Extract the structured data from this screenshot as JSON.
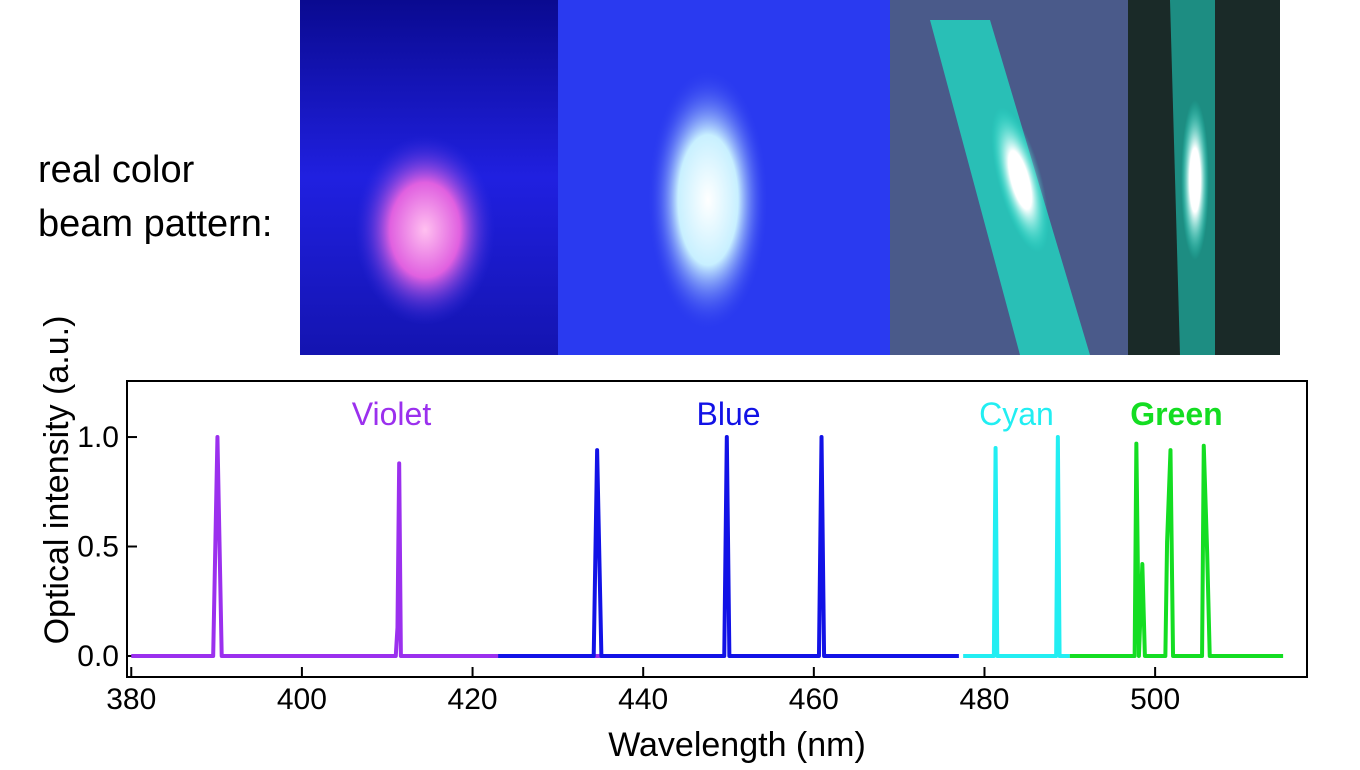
{
  "chart_data": {
    "type": "line",
    "annotations": [
      "real color",
      "beam pattern:"
    ],
    "xlabel": "Wavelength (nm)",
    "ylabel": "Optical intensity (a.u.)",
    "xlim": [
      379.5,
      517.8
    ],
    "ylim": [
      -0.096,
      1.256
    ],
    "xticks": [
      380,
      400,
      420,
      440,
      460,
      480,
      500
    ],
    "yticks": [
      {
        "value": 0,
        "label": "0.0"
      },
      {
        "value": 0.5,
        "label": "0.5"
      },
      {
        "value": 1,
        "label": "1.0"
      }
    ],
    "series": [
      {
        "name": "Violet",
        "color": "#9b30ee",
        "bold": false,
        "x": [
          380,
          389.6,
          390.1,
          390.6,
          411,
          411.2,
          411.4,
          411.6,
          412,
          441
        ],
        "values": [
          0,
          0,
          1.0,
          0,
          0,
          0.13,
          0.88,
          0,
          0,
          0
        ]
      },
      {
        "name": "Blue",
        "color": "#1212e6",
        "bold": false,
        "x": [
          423,
          434.2,
          434.6,
          435.1,
          449.5,
          449.8,
          450.1,
          460.6,
          460.9,
          461.2,
          477
        ],
        "values": [
          0,
          0,
          0.94,
          0,
          0,
          1.0,
          0,
          0,
          1.0,
          0,
          0
        ]
      },
      {
        "name": "Cyan",
        "color": "#22eef2",
        "bold": false,
        "x": [
          477.5,
          481.1,
          481.3,
          481.5,
          488.4,
          488.6,
          488.8,
          490
        ],
        "values": [
          0,
          0,
          0.95,
          0,
          0,
          1.0,
          0,
          0
        ]
      },
      {
        "name": "Green",
        "color": "#14dd22",
        "bold": true,
        "x": [
          490,
          497.6,
          497.8,
          498.1,
          498.5,
          498.8,
          501.2,
          501.4,
          501.8,
          502.1,
          505.5,
          505.7,
          506.1,
          506.4,
          515
        ],
        "values": [
          0,
          0,
          0.97,
          0,
          0.42,
          0,
          0,
          0.52,
          0.94,
          0,
          0,
          0.96,
          0.47,
          0,
          0
        ]
      }
    ]
  }
}
